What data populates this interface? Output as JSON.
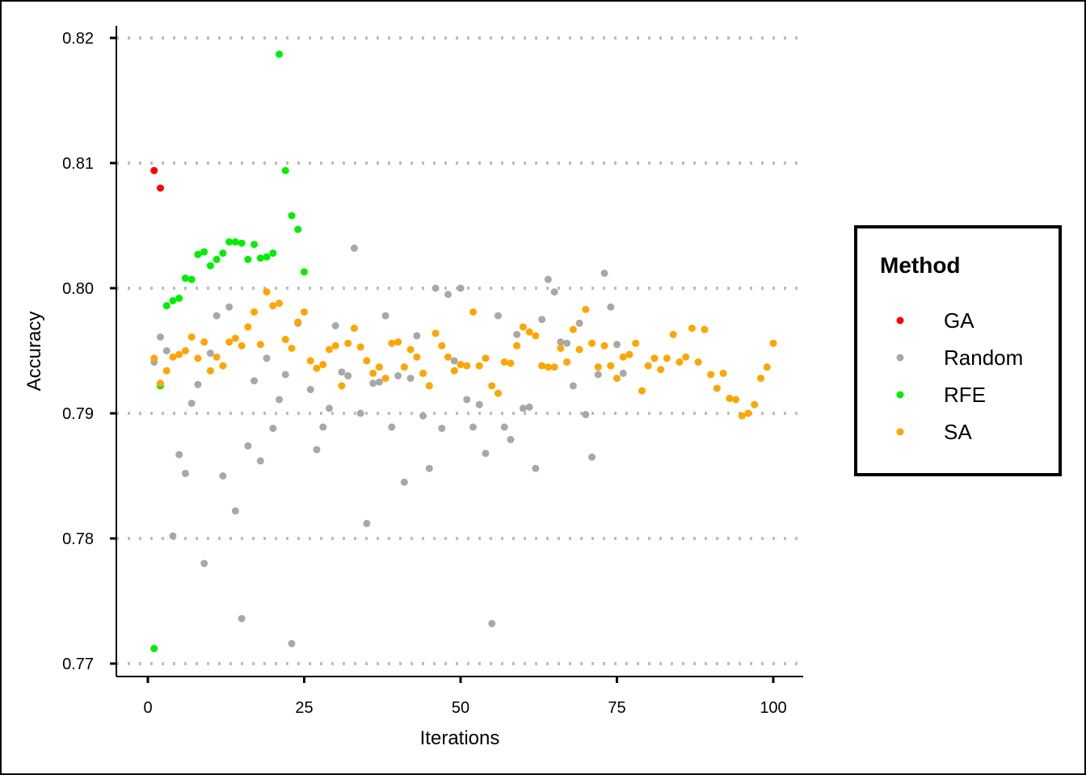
{
  "chart_data": {
    "type": "scatter",
    "xlabel": "Iterations",
    "ylabel": "Accuracy",
    "xlim": [
      -10,
      105
    ],
    "ylim": [
      0.769,
      0.821
    ],
    "x_ticks": [
      0,
      25,
      50,
      75,
      100
    ],
    "y_ticks": [
      0.77,
      0.78,
      0.79,
      0.8,
      0.81,
      0.82
    ],
    "y_tick_labels": [
      "0.77",
      "0.78",
      "0.79",
      "0.80",
      "0.81",
      "0.82"
    ],
    "grid": "horizontal-dotted",
    "legend": {
      "title": "Method",
      "placement": "right"
    },
    "series": [
      {
        "name": "GA",
        "color": "#ff0000",
        "points": [
          [
            1,
            0.8094
          ],
          [
            2,
            0.808
          ]
        ]
      },
      {
        "name": "Random",
        "color": "#a8a8a8",
        "points": [
          [
            1,
            0.7941
          ],
          [
            2,
            0.7961
          ],
          [
            3,
            0.795
          ],
          [
            4,
            0.7802
          ],
          [
            5,
            0.7867
          ],
          [
            6,
            0.7852
          ],
          [
            7,
            0.7908
          ],
          [
            8,
            0.7923
          ],
          [
            9,
            0.778
          ],
          [
            10,
            0.7948
          ],
          [
            11,
            0.7978
          ],
          [
            12,
            0.785
          ],
          [
            13,
            0.7985
          ],
          [
            14,
            0.7822
          ],
          [
            15,
            0.7736
          ],
          [
            16,
            0.7874
          ],
          [
            17,
            0.7926
          ],
          [
            18,
            0.7862
          ],
          [
            19,
            0.7944
          ],
          [
            20,
            0.7888
          ],
          [
            21,
            0.7911
          ],
          [
            22,
            0.7931
          ],
          [
            23,
            0.7716
          ],
          [
            24,
            0.7972
          ],
          [
            26,
            0.7919
          ],
          [
            27,
            0.7871
          ],
          [
            28,
            0.7889
          ],
          [
            29,
            0.7904
          ],
          [
            30,
            0.797
          ],
          [
            31,
            0.7933
          ],
          [
            32,
            0.793
          ],
          [
            33,
            0.8032
          ],
          [
            34,
            0.79
          ],
          [
            35,
            0.7812
          ],
          [
            36,
            0.7924
          ],
          [
            37,
            0.7925
          ],
          [
            38,
            0.7978
          ],
          [
            39,
            0.7889
          ],
          [
            40,
            0.793
          ],
          [
            41,
            0.7845
          ],
          [
            42,
            0.7928
          ],
          [
            43,
            0.7962
          ],
          [
            44,
            0.7898
          ],
          [
            45,
            0.7856
          ],
          [
            46,
            0.8
          ],
          [
            47,
            0.7888
          ],
          [
            48,
            0.7995
          ],
          [
            49,
            0.7942
          ],
          [
            50,
            0.8
          ],
          [
            51,
            0.7911
          ],
          [
            52,
            0.7889
          ],
          [
            53,
            0.7907
          ],
          [
            54,
            0.7868
          ],
          [
            55,
            0.7732
          ],
          [
            56,
            0.7978
          ],
          [
            57,
            0.7889
          ],
          [
            58,
            0.7879
          ],
          [
            59,
            0.7963
          ],
          [
            60,
            0.7904
          ],
          [
            61,
            0.7905
          ],
          [
            62,
            0.7856
          ],
          [
            63,
            0.7975
          ],
          [
            64,
            0.8007
          ],
          [
            65,
            0.7997
          ],
          [
            66,
            0.7957
          ],
          [
            67,
            0.7956
          ],
          [
            68,
            0.7922
          ],
          [
            69,
            0.7972
          ],
          [
            70,
            0.7899
          ],
          [
            71,
            0.7865
          ],
          [
            72,
            0.7931
          ],
          [
            73,
            0.8012
          ],
          [
            74,
            0.7985
          ],
          [
            75,
            0.7955
          ],
          [
            76,
            0.7932
          ]
        ]
      },
      {
        "name": "RFE",
        "color": "#00ee00",
        "points": [
          [
            1,
            0.7712
          ],
          [
            2,
            0.7922
          ],
          [
            3,
            0.7986
          ],
          [
            4,
            0.799
          ],
          [
            5,
            0.7992
          ],
          [
            6,
            0.8008
          ],
          [
            7,
            0.8007
          ],
          [
            8,
            0.8027
          ],
          [
            9,
            0.8029
          ],
          [
            10,
            0.8018
          ],
          [
            11,
            0.8023
          ],
          [
            12,
            0.8028
          ],
          [
            13,
            0.8037
          ],
          [
            14,
            0.8037
          ],
          [
            15,
            0.8036
          ],
          [
            16,
            0.8023
          ],
          [
            17,
            0.8035
          ],
          [
            18,
            0.8024
          ],
          [
            19,
            0.8025
          ],
          [
            20,
            0.8028
          ],
          [
            21,
            0.8187
          ],
          [
            22,
            0.8094
          ],
          [
            23,
            0.8058
          ],
          [
            24,
            0.8047
          ],
          [
            25,
            0.8013
          ]
        ]
      },
      {
        "name": "SA",
        "color": "#ffa500",
        "points": [
          [
            1,
            0.7944
          ],
          [
            2,
            0.7924
          ],
          [
            3,
            0.7934
          ],
          [
            4,
            0.7945
          ],
          [
            5,
            0.7947
          ],
          [
            6,
            0.795
          ],
          [
            7,
            0.7961
          ],
          [
            8,
            0.7944
          ],
          [
            9,
            0.7957
          ],
          [
            10,
            0.7934
          ],
          [
            11,
            0.7945
          ],
          [
            12,
            0.7938
          ],
          [
            13,
            0.7957
          ],
          [
            14,
            0.796
          ],
          [
            15,
            0.7954
          ],
          [
            16,
            0.7969
          ],
          [
            17,
            0.7981
          ],
          [
            18,
            0.7955
          ],
          [
            19,
            0.7997
          ],
          [
            20,
            0.7986
          ],
          [
            21,
            0.7988
          ],
          [
            22,
            0.7959
          ],
          [
            23,
            0.7952
          ],
          [
            24,
            0.7973
          ],
          [
            25,
            0.7981
          ],
          [
            26,
            0.7942
          ],
          [
            27,
            0.7936
          ],
          [
            28,
            0.7939
          ],
          [
            29,
            0.7951
          ],
          [
            30,
            0.7954
          ],
          [
            31,
            0.7922
          ],
          [
            32,
            0.7956
          ],
          [
            33,
            0.7968
          ],
          [
            34,
            0.7953
          ],
          [
            35,
            0.7942
          ],
          [
            36,
            0.7932
          ],
          [
            37,
            0.7937
          ],
          [
            38,
            0.7928
          ],
          [
            39,
            0.7956
          ],
          [
            40,
            0.7957
          ],
          [
            41,
            0.7937
          ],
          [
            42,
            0.7951
          ],
          [
            43,
            0.7945
          ],
          [
            44,
            0.7932
          ],
          [
            45,
            0.7922
          ],
          [
            46,
            0.7964
          ],
          [
            47,
            0.7954
          ],
          [
            48,
            0.7945
          ],
          [
            49,
            0.7934
          ],
          [
            50,
            0.7939
          ],
          [
            51,
            0.7938
          ],
          [
            52,
            0.7981
          ],
          [
            53,
            0.7938
          ],
          [
            54,
            0.7944
          ],
          [
            55,
            0.7922
          ],
          [
            56,
            0.7916
          ],
          [
            57,
            0.7941
          ],
          [
            58,
            0.794
          ],
          [
            59,
            0.7954
          ],
          [
            60,
            0.7969
          ],
          [
            61,
            0.7965
          ],
          [
            62,
            0.7962
          ],
          [
            63,
            0.7938
          ],
          [
            64,
            0.7937
          ],
          [
            65,
            0.7937
          ],
          [
            66,
            0.7952
          ],
          [
            67,
            0.7941
          ],
          [
            68,
            0.7967
          ],
          [
            69,
            0.7951
          ],
          [
            70,
            0.7983
          ],
          [
            71,
            0.7956
          ],
          [
            72,
            0.7937
          ],
          [
            73,
            0.7954
          ],
          [
            74,
            0.7938
          ],
          [
            75,
            0.7928
          ],
          [
            76,
            0.7945
          ],
          [
            77,
            0.7947
          ],
          [
            78,
            0.7956
          ],
          [
            79,
            0.7918
          ],
          [
            80,
            0.7938
          ],
          [
            81,
            0.7944
          ],
          [
            82,
            0.7935
          ],
          [
            83,
            0.7944
          ],
          [
            84,
            0.7963
          ],
          [
            85,
            0.7941
          ],
          [
            86,
            0.7945
          ],
          [
            87,
            0.7968
          ],
          [
            88,
            0.7941
          ],
          [
            89,
            0.7967
          ],
          [
            90,
            0.7931
          ],
          [
            91,
            0.792
          ],
          [
            92,
            0.7932
          ],
          [
            93,
            0.7912
          ],
          [
            94,
            0.7911
          ],
          [
            95,
            0.7898
          ],
          [
            96,
            0.79
          ],
          [
            97,
            0.7907
          ],
          [
            98,
            0.7928
          ],
          [
            99,
            0.7937
          ],
          [
            100,
            0.7956
          ]
        ]
      }
    ]
  }
}
